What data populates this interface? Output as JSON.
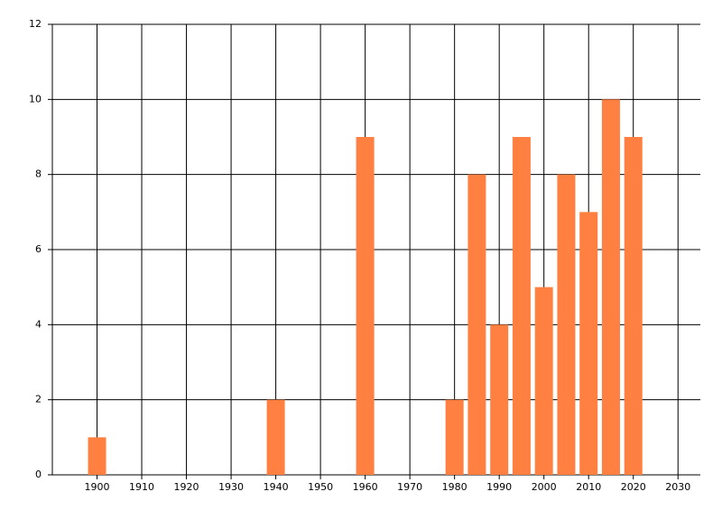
{
  "chart_data": {
    "type": "bar",
    "x": [
      1900,
      1940,
      1960,
      1980,
      1985,
      1990,
      1995,
      2000,
      2005,
      2010,
      2015,
      2020
    ],
    "values": [
      1,
      2,
      9,
      2,
      8,
      4,
      9,
      5,
      8,
      7,
      10,
      9
    ],
    "color": "#ff8040",
    "xlim": [
      1890,
      2035
    ],
    "xticks": [
      1900,
      1910,
      1920,
      1930,
      1940,
      1950,
      1960,
      1970,
      1980,
      1990,
      2000,
      2010,
      2020,
      2030
    ],
    "ylim": [
      0,
      12
    ],
    "yticks": [
      0,
      2,
      4,
      6,
      8,
      10,
      12
    ],
    "grid": true
  }
}
